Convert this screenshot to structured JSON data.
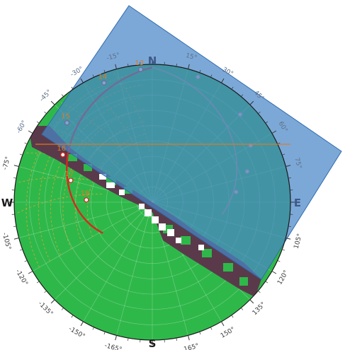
{
  "cardinals": {
    "north": {
      "label": "N",
      "color": "#3d5a8a"
    },
    "east": {
      "label": "E",
      "color": "#3d5a8a"
    },
    "south": {
      "label": "S",
      "color": "#1a1a1a"
    },
    "west": {
      "label": "W",
      "color": "#1a1a1a"
    }
  },
  "azimuth_ticks": [
    {
      "label": "-15°",
      "az": -15
    },
    {
      "label": "15°",
      "az": 15
    },
    {
      "label": "30°",
      "az": 30
    },
    {
      "label": "45°",
      "az": 45
    },
    {
      "label": "60°",
      "az": 60
    },
    {
      "label": "75°",
      "az": 75
    },
    {
      "label": "105°",
      "az": 105
    },
    {
      "label": "120°",
      "az": 120
    },
    {
      "label": "135°",
      "az": 135
    },
    {
      "label": "150°",
      "az": 150
    },
    {
      "label": "165°",
      "az": 165
    },
    {
      "label": "-165°",
      "az": -165
    },
    {
      "label": "-150°",
      "az": -150
    },
    {
      "label": "-135°",
      "az": -135
    },
    {
      "label": "-120°",
      "az": -120
    },
    {
      "label": "-105°",
      "az": -105
    },
    {
      "label": "-75°",
      "az": -75
    },
    {
      "label": "-60°",
      "az": -60
    },
    {
      "label": "-45°",
      "az": -45
    },
    {
      "label": "-30°",
      "az": -30
    }
  ],
  "sun_path": {
    "color": "#d42a1c",
    "labeled_hours": [
      {
        "label": "13",
        "az": -5,
        "alt": 3
      },
      {
        "label": "14",
        "az": -22,
        "alt": 6
      },
      {
        "label": "15",
        "az": -47,
        "alt": 14
      },
      {
        "label": "16",
        "az": -62,
        "alt": 24
      },
      {
        "label": "17",
        "az": -75,
        "alt": 35
      },
      {
        "label": "18",
        "az": -88,
        "alt": 47
      }
    ],
    "faded_hours": [
      {
        "az": 20,
        "alt": 3
      },
      {
        "az": 45,
        "alt": 9
      },
      {
        "az": 60,
        "alt": 16
      },
      {
        "az": 72,
        "alt": 25
      },
      {
        "az": 83,
        "alt": 35
      }
    ]
  },
  "colors": {
    "ground": "#2fb84a",
    "obstruction": "#5a3a4a",
    "sky_panel": "#4a86c8",
    "horizon_line": "#e07b22",
    "hour_label": "#e07b22"
  },
  "icons": {
    "compass_rose": "compass-rose-icon"
  }
}
